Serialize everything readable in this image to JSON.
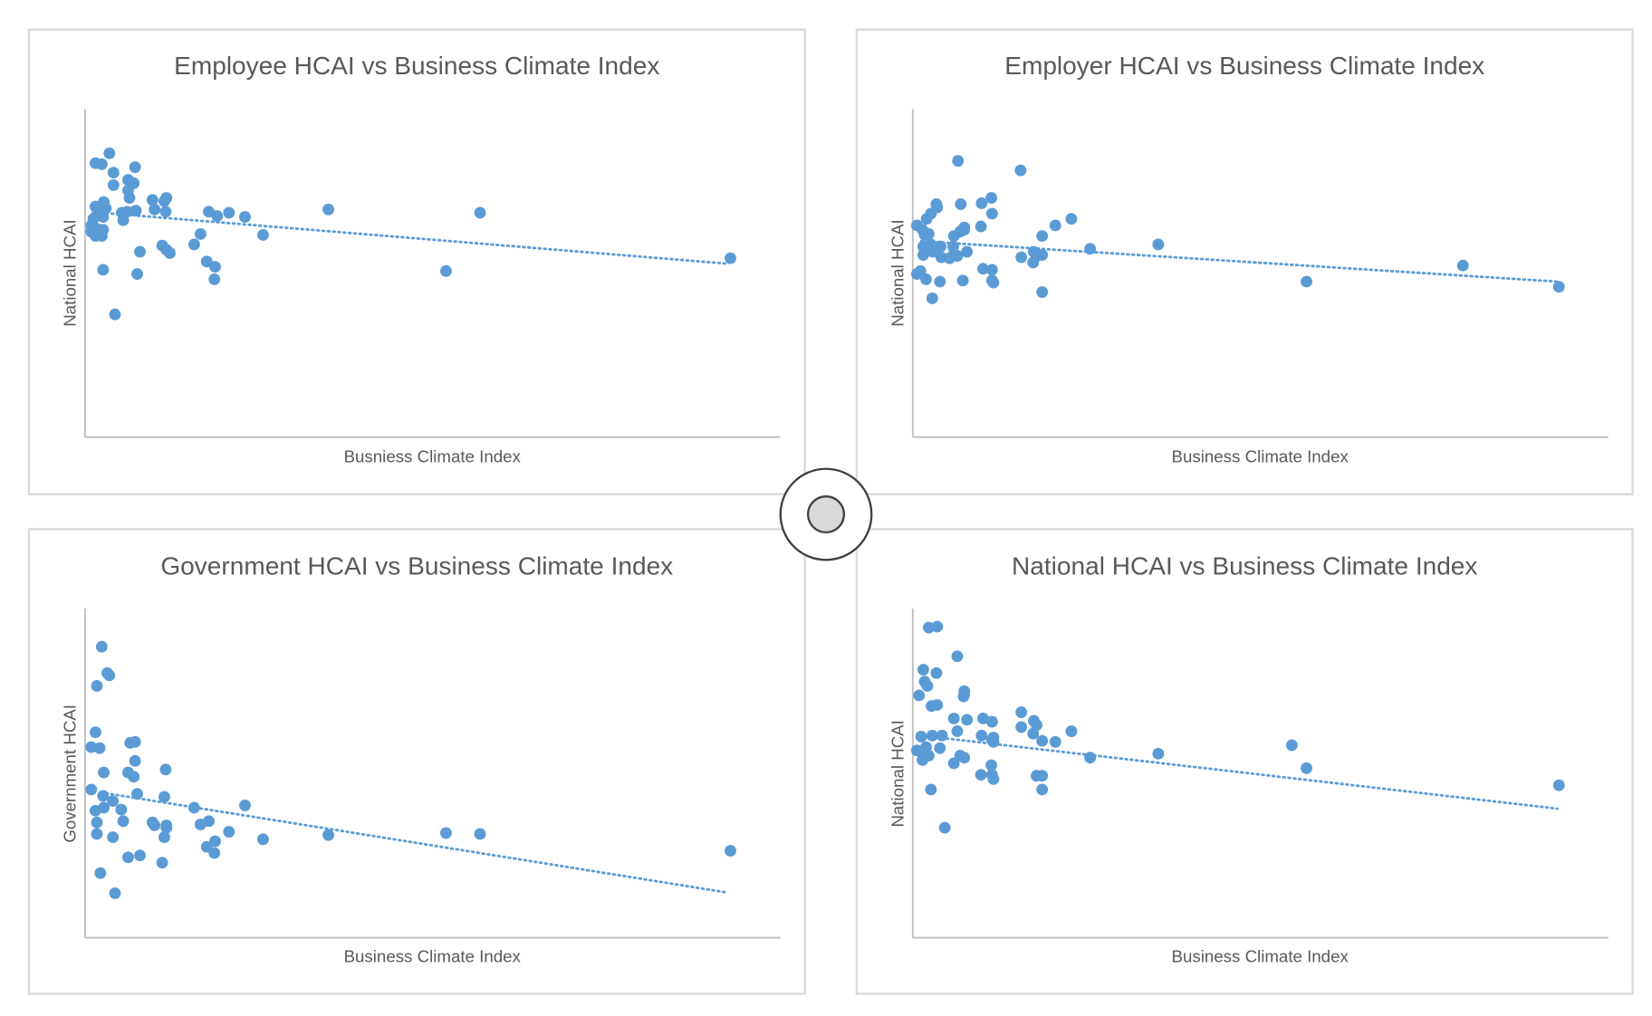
{
  "colors": {
    "marker": "#5b9bd5",
    "text": "#595959",
    "axis": "#bfbfbf",
    "frame": "#d9d9d9"
  },
  "chart_data": [
    {
      "type": "scatter",
      "title": "Employee HCAI vs Business Climate Index",
      "xlabel": "Busniess Climate  Index",
      "ylabel": "National HCAI",
      "xlim": [
        0,
        100
      ],
      "ylim": [
        0,
        100
      ],
      "grid": false,
      "legend": "none",
      "trendline": {
        "type": "linear",
        "style": "dotted",
        "from": [
          2.3,
          68.4
        ],
        "to": [
          92.1,
          52.9
        ]
      },
      "points": [
        [
          1.5,
          83.5
        ],
        [
          2.4,
          83.2
        ],
        [
          3.5,
          86.5
        ],
        [
          4.1,
          80.6
        ],
        [
          7.2,
          82.3
        ],
        [
          4.1,
          76.8
        ],
        [
          6.2,
          78.4
        ],
        [
          7.0,
          77.4
        ],
        [
          6.2,
          75.2
        ],
        [
          6.4,
          72.9
        ],
        [
          1.5,
          70.3
        ],
        [
          2.7,
          71.6
        ],
        [
          3.0,
          69.7
        ],
        [
          1.7,
          67.7
        ],
        [
          1.2,
          66.5
        ],
        [
          2.6,
          67.1
        ],
        [
          5.3,
          68.4
        ],
        [
          6.1,
          68.7
        ],
        [
          5.5,
          66.1
        ],
        [
          7.3,
          69.0
        ],
        [
          9.7,
          72.3
        ],
        [
          10.0,
          69.4
        ],
        [
          11.4,
          71.9
        ],
        [
          11.7,
          72.9
        ],
        [
          11.6,
          68.7
        ],
        [
          17.8,
          68.7
        ],
        [
          19.0,
          67.4
        ],
        [
          20.7,
          68.4
        ],
        [
          23.0,
          67.1
        ],
        [
          35.0,
          69.4
        ],
        [
          56.8,
          68.4
        ],
        [
          0.9,
          64.5
        ],
        [
          0.9,
          62.6
        ],
        [
          1.7,
          63.5
        ],
        [
          2.0,
          61.9
        ],
        [
          2.6,
          63.2
        ],
        [
          1.5,
          61.3
        ],
        [
          2.4,
          61.3
        ],
        [
          7.9,
          56.5
        ],
        [
          11.1,
          58.4
        ],
        [
          12.2,
          56.1
        ],
        [
          11.7,
          57.1
        ],
        [
          16.6,
          61.9
        ],
        [
          15.7,
          58.7
        ],
        [
          25.6,
          61.6
        ],
        [
          17.5,
          53.5
        ],
        [
          18.7,
          51.9
        ],
        [
          18.6,
          48.1
        ],
        [
          2.6,
          51.0
        ],
        [
          7.5,
          49.7
        ],
        [
          51.9,
          50.6
        ],
        [
          92.8,
          54.5
        ],
        [
          4.3,
          37.4
        ]
      ]
    },
    {
      "type": "scatter",
      "title": "Employer HCAI vs Business Climate Index",
      "xlabel": "Business Climate Index",
      "ylabel": "National HCAI",
      "xlim": [
        0,
        100
      ],
      "ylim": [
        0,
        100
      ],
      "grid": false,
      "legend": "none",
      "trendline": {
        "type": "linear",
        "style": "dotted",
        "from": [
          1.2,
          59.7
        ],
        "to": [
          92.7,
          47.4
        ]
      },
      "points": [
        [
          6.5,
          84.2
        ],
        [
          15.5,
          81.3
        ],
        [
          0.6,
          64.5
        ],
        [
          1.4,
          63.2
        ],
        [
          2.0,
          66.5
        ],
        [
          2.6,
          68.1
        ],
        [
          3.4,
          71.0
        ],
        [
          3.5,
          70.0
        ],
        [
          1.7,
          61.6
        ],
        [
          2.3,
          61.9
        ],
        [
          1.5,
          58.1
        ],
        [
          2.6,
          58.7
        ],
        [
          4.0,
          58.1
        ],
        [
          2.9,
          56.5
        ],
        [
          1.5,
          55.5
        ],
        [
          4.1,
          54.8
        ],
        [
          5.3,
          54.5
        ],
        [
          5.9,
          55.8
        ],
        [
          6.4,
          55.2
        ],
        [
          5.8,
          58.1
        ],
        [
          6.8,
          62.6
        ],
        [
          7.4,
          63.9
        ],
        [
          7.4,
          63.2
        ],
        [
          5.9,
          61.3
        ],
        [
          7.8,
          56.5
        ],
        [
          6.9,
          71.0
        ],
        [
          9.9,
          71.3
        ],
        [
          11.3,
          72.9
        ],
        [
          11.4,
          68.1
        ],
        [
          9.8,
          64.2
        ],
        [
          10.1,
          51.3
        ],
        [
          11.4,
          51.0
        ],
        [
          11.4,
          47.7
        ],
        [
          11.6,
          47.1
        ],
        [
          0.6,
          49.7
        ],
        [
          1.1,
          50.6
        ],
        [
          1.9,
          48.1
        ],
        [
          3.9,
          47.4
        ],
        [
          2.8,
          42.3
        ],
        [
          7.2,
          47.7
        ],
        [
          15.6,
          54.8
        ],
        [
          17.4,
          56.5
        ],
        [
          17.8,
          55.2
        ],
        [
          17.3,
          53.2
        ],
        [
          18.6,
          55.5
        ],
        [
          18.6,
          61.3
        ],
        [
          20.5,
          64.5
        ],
        [
          22.8,
          66.5
        ],
        [
          25.5,
          57.4
        ],
        [
          35.3,
          58.7
        ],
        [
          56.6,
          47.4
        ],
        [
          79.1,
          52.3
        ],
        [
          18.6,
          44.2
        ],
        [
          92.9,
          45.8
        ]
      ]
    },
    {
      "type": "scatter",
      "title": "Government HCAI vs Business Climate Index",
      "xlabel": "Business Climate Index",
      "ylabel": "Government HCAI",
      "xlim": [
        0,
        100
      ],
      "ylim": [
        0,
        100
      ],
      "grid": false,
      "legend": "none",
      "trendline": {
        "type": "linear",
        "style": "dotted",
        "from": [
          2.3,
          44.1
        ],
        "to": [
          92.1,
          13.8
        ]
      },
      "points": [
        [
          2.4,
          88.4
        ],
        [
          3.2,
          80.4
        ],
        [
          3.5,
          79.7
        ],
        [
          1.7,
          76.5
        ],
        [
          1.5,
          62.4
        ],
        [
          0.9,
          57.9
        ],
        [
          2.1,
          57.6
        ],
        [
          2.7,
          50.2
        ],
        [
          6.5,
          59.2
        ],
        [
          7.2,
          59.5
        ],
        [
          7.2,
          53.7
        ],
        [
          6.2,
          50.2
        ],
        [
          7.0,
          48.9
        ],
        [
          11.6,
          51.1
        ],
        [
          0.9,
          45.0
        ],
        [
          2.6,
          43.1
        ],
        [
          4.0,
          41.5
        ],
        [
          1.5,
          38.6
        ],
        [
          2.7,
          39.5
        ],
        [
          5.2,
          38.9
        ],
        [
          7.5,
          43.7
        ],
        [
          11.4,
          42.8
        ],
        [
          5.5,
          35.4
        ],
        [
          1.7,
          35.0
        ],
        [
          1.7,
          31.5
        ],
        [
          4.0,
          30.5
        ],
        [
          9.7,
          35.0
        ],
        [
          10.0,
          34.1
        ],
        [
          11.7,
          34.1
        ],
        [
          11.4,
          30.5
        ],
        [
          11.7,
          33.4
        ],
        [
          15.7,
          39.5
        ],
        [
          16.6,
          34.4
        ],
        [
          17.8,
          35.4
        ],
        [
          20.7,
          32.2
        ],
        [
          23.0,
          40.2
        ],
        [
          25.6,
          29.9
        ],
        [
          35.0,
          31.2
        ],
        [
          56.8,
          31.5
        ],
        [
          51.9,
          31.8
        ],
        [
          17.5,
          27.6
        ],
        [
          18.7,
          29.3
        ],
        [
          18.6,
          25.7
        ],
        [
          6.2,
          24.4
        ],
        [
          7.9,
          25.0
        ],
        [
          11.1,
          22.8
        ],
        [
          2.2,
          19.6
        ],
        [
          4.3,
          13.5
        ],
        [
          92.8,
          26.4
        ]
      ]
    },
    {
      "type": "scatter",
      "title": "National HCAI vs Business Climate Index",
      "xlabel": "Business Climate Index",
      "ylabel": "National HCAI",
      "xlim": [
        0,
        100
      ],
      "ylim": [
        0,
        100
      ],
      "grid": false,
      "legend": "none",
      "trendline": {
        "type": "linear",
        "style": "dotted",
        "from": [
          1.1,
          61.4
        ],
        "to": [
          92.7,
          39.2
        ]
      },
      "points": [
        [
          2.3,
          94.2
        ],
        [
          3.5,
          94.5
        ],
        [
          6.4,
          85.5
        ],
        [
          1.5,
          81.4
        ],
        [
          3.4,
          80.4
        ],
        [
          1.7,
          77.8
        ],
        [
          2.1,
          76.5
        ],
        [
          0.9,
          73.6
        ],
        [
          2.7,
          70.4
        ],
        [
          3.5,
          70.7
        ],
        [
          7.3,
          73.3
        ],
        [
          7.4,
          74.9
        ],
        [
          7.4,
          73.9
        ],
        [
          5.9,
          66.6
        ],
        [
          7.8,
          66.2
        ],
        [
          10.1,
          66.6
        ],
        [
          11.4,
          65.6
        ],
        [
          1.2,
          61.1
        ],
        [
          2.8,
          61.4
        ],
        [
          4.2,
          61.4
        ],
        [
          6.4,
          62.7
        ],
        [
          15.6,
          64.0
        ],
        [
          17.4,
          65.9
        ],
        [
          17.8,
          64.6
        ],
        [
          17.3,
          62.0
        ],
        [
          11.6,
          60.8
        ],
        [
          9.9,
          61.4
        ],
        [
          11.6,
          59.5
        ],
        [
          11.4,
          60.1
        ],
        [
          15.6,
          68.5
        ],
        [
          18.6,
          59.8
        ],
        [
          22.8,
          62.7
        ],
        [
          20.5,
          59.5
        ],
        [
          25.5,
          54.7
        ],
        [
          35.3,
          55.9
        ],
        [
          54.5,
          58.5
        ],
        [
          56.6,
          51.5
        ],
        [
          0.6,
          56.9
        ],
        [
          1.1,
          56.6
        ],
        [
          1.9,
          57.9
        ],
        [
          3.9,
          57.6
        ],
        [
          1.4,
          54.0
        ],
        [
          2.3,
          55.3
        ],
        [
          6.8,
          55.3
        ],
        [
          7.4,
          54.7
        ],
        [
          5.9,
          53.0
        ],
        [
          11.3,
          52.4
        ],
        [
          11.4,
          49.5
        ],
        [
          11.6,
          48.2
        ],
        [
          9.8,
          49.5
        ],
        [
          18.6,
          49.2
        ],
        [
          17.8,
          49.2
        ],
        [
          18.6,
          45.0
        ],
        [
          2.6,
          45.0
        ],
        [
          4.6,
          33.4
        ],
        [
          92.9,
          46.3
        ]
      ]
    }
  ],
  "control": {
    "knob": "center-handle"
  }
}
